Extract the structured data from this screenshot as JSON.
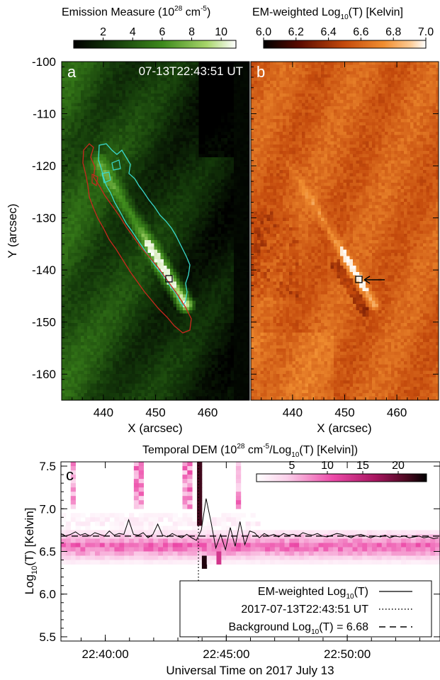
{
  "chart_data": [
    {
      "type": "heatmap",
      "panel_label": "a",
      "timestamp": "07-13T22:43:51 UT",
      "colorbar_title_parts": [
        "Emission Measure (10",
        "28",
        " cm",
        "-5",
        ")"
      ],
      "colorbar_ticks": [
        "2",
        "4",
        "6",
        "8",
        "10"
      ],
      "colorbar_range": [
        0,
        11
      ],
      "xlabel": "X (arcsec)",
      "ylabel": "Y (arcsec)",
      "xticks": [
        "440",
        "450",
        "460"
      ],
      "yticks": [
        "-100",
        "-110",
        "-120",
        "-130",
        "-140",
        "-150",
        "-160"
      ],
      "xlim": [
        432,
        468
      ],
      "ylim": [
        -165,
        -100
      ],
      "colormap": "green",
      "contour_colors": [
        "#3ad8cc",
        "#c8281e"
      ],
      "marked_pixel": [
        453,
        -142.5
      ]
    },
    {
      "type": "heatmap",
      "panel_label": "b",
      "colorbar_title_parts": [
        "EM-weighted Log",
        "10",
        "(T) [Kelvin]"
      ],
      "colorbar_ticks": [
        "6.0",
        "6.2",
        "6.4",
        "6.6",
        "6.8",
        "7.0"
      ],
      "colorbar_range": [
        6.0,
        7.0
      ],
      "xlabel": "X (arcsec)",
      "xticks": [
        "440",
        "450",
        "460"
      ],
      "xlim": [
        432,
        468
      ],
      "ylim": [
        -165,
        -100
      ],
      "colormap": "orange",
      "marked_pixel": [
        453,
        -142.5
      ]
    },
    {
      "type": "heatmap",
      "panel_label": "c",
      "title_parts": [
        "Temporal DEM (10",
        "28",
        " cm",
        "-5",
        "/Log",
        "10",
        "(T) [Kelvin])"
      ],
      "colorbar_ticks": [
        "5",
        "10",
        "15",
        "20"
      ],
      "colorbar_range": [
        0,
        24
      ],
      "xlabel": "Universal Time on 2017 July 13",
      "ylabel_parts": [
        "Log",
        "10",
        "(T) [Kelvin]"
      ],
      "xticks": [
        "22:40:00",
        "22:45:00",
        "22:50:00"
      ],
      "yticks": [
        "5.5",
        "6.0",
        "6.5",
        "7.0",
        "7.5"
      ],
      "xlim": [
        "22:38:10",
        "22:53:50"
      ],
      "ylim": [
        5.45,
        7.55
      ],
      "colormap": "pink",
      "legend_position": "bottom-right",
      "legend": [
        {
          "label_parts": [
            "EM-weighted Log",
            "10",
            "(T)"
          ],
          "style": "solid"
        },
        {
          "label_parts": [
            "2017-07-13T22:43:51 UT"
          ],
          "style": "dotted"
        },
        {
          "label_parts": [
            "Background Log",
            "10",
            "(T) = 6.68"
          ],
          "style": "dashed"
        }
      ],
      "marker_time": "22:43:51",
      "background_logT": 6.68,
      "series": [
        {
          "style": "solid",
          "x": [
            "22:38:10",
            "22:38:22",
            "22:38:34",
            "22:38:46",
            "22:38:58",
            "22:39:10",
            "22:39:22",
            "22:39:34",
            "22:39:46",
            "22:39:58",
            "22:40:10",
            "22:40:22",
            "22:40:34",
            "22:40:46",
            "22:40:58",
            "22:41:10",
            "22:41:22",
            "22:41:34",
            "22:41:46",
            "22:41:58",
            "22:42:10",
            "22:42:22",
            "22:42:34",
            "22:42:46",
            "22:42:58",
            "22:43:10",
            "22:43:22",
            "22:43:34",
            "22:43:46",
            "22:43:58",
            "22:44:10",
            "22:44:22",
            "22:44:34",
            "22:44:46",
            "22:44:58",
            "22:45:10",
            "22:45:22",
            "22:45:34",
            "22:45:46",
            "22:45:58",
            "22:46:10",
            "22:46:22",
            "22:46:34",
            "22:46:46",
            "22:46:58",
            "22:47:10",
            "22:47:22",
            "22:47:34",
            "22:47:46",
            "22:47:58",
            "22:48:10",
            "22:48:22",
            "22:48:34",
            "22:48:46",
            "22:48:58",
            "22:49:10",
            "22:49:22",
            "22:49:34",
            "22:49:46",
            "22:49:58",
            "22:50:10",
            "22:50:22",
            "22:50:34",
            "22:50:46",
            "22:50:58",
            "22:51:10",
            "22:51:22",
            "22:51:34",
            "22:51:46",
            "22:51:58",
            "22:52:10",
            "22:52:22",
            "22:52:34",
            "22:52:46",
            "22:52:58",
            "22:53:10",
            "22:53:22",
            "22:53:34",
            "22:53:46"
          ],
          "y": [
            6.71,
            6.68,
            6.7,
            6.73,
            6.69,
            6.71,
            6.68,
            6.72,
            6.7,
            6.68,
            6.74,
            6.69,
            6.71,
            6.7,
            6.87,
            6.7,
            6.69,
            6.72,
            6.66,
            6.7,
            6.82,
            6.69,
            6.67,
            6.71,
            6.68,
            6.66,
            6.7,
            6.66,
            6.63,
            6.75,
            7.12,
            6.85,
            6.54,
            6.7,
            6.52,
            6.78,
            6.56,
            6.85,
            6.58,
            6.74,
            6.72,
            6.66,
            6.71,
            6.68,
            6.7,
            6.67,
            6.71,
            6.69,
            6.7,
            6.68,
            6.72,
            6.7,
            6.69,
            6.71,
            6.68,
            6.67,
            6.69,
            6.71,
            6.7,
            6.68,
            6.66,
            6.69,
            6.7,
            6.68,
            6.66,
            6.68,
            6.67,
            6.69,
            6.66,
            6.68,
            6.67,
            6.68,
            6.66,
            6.67,
            6.68,
            6.66,
            6.67,
            6.65,
            6.66
          ]
        }
      ]
    }
  ]
}
